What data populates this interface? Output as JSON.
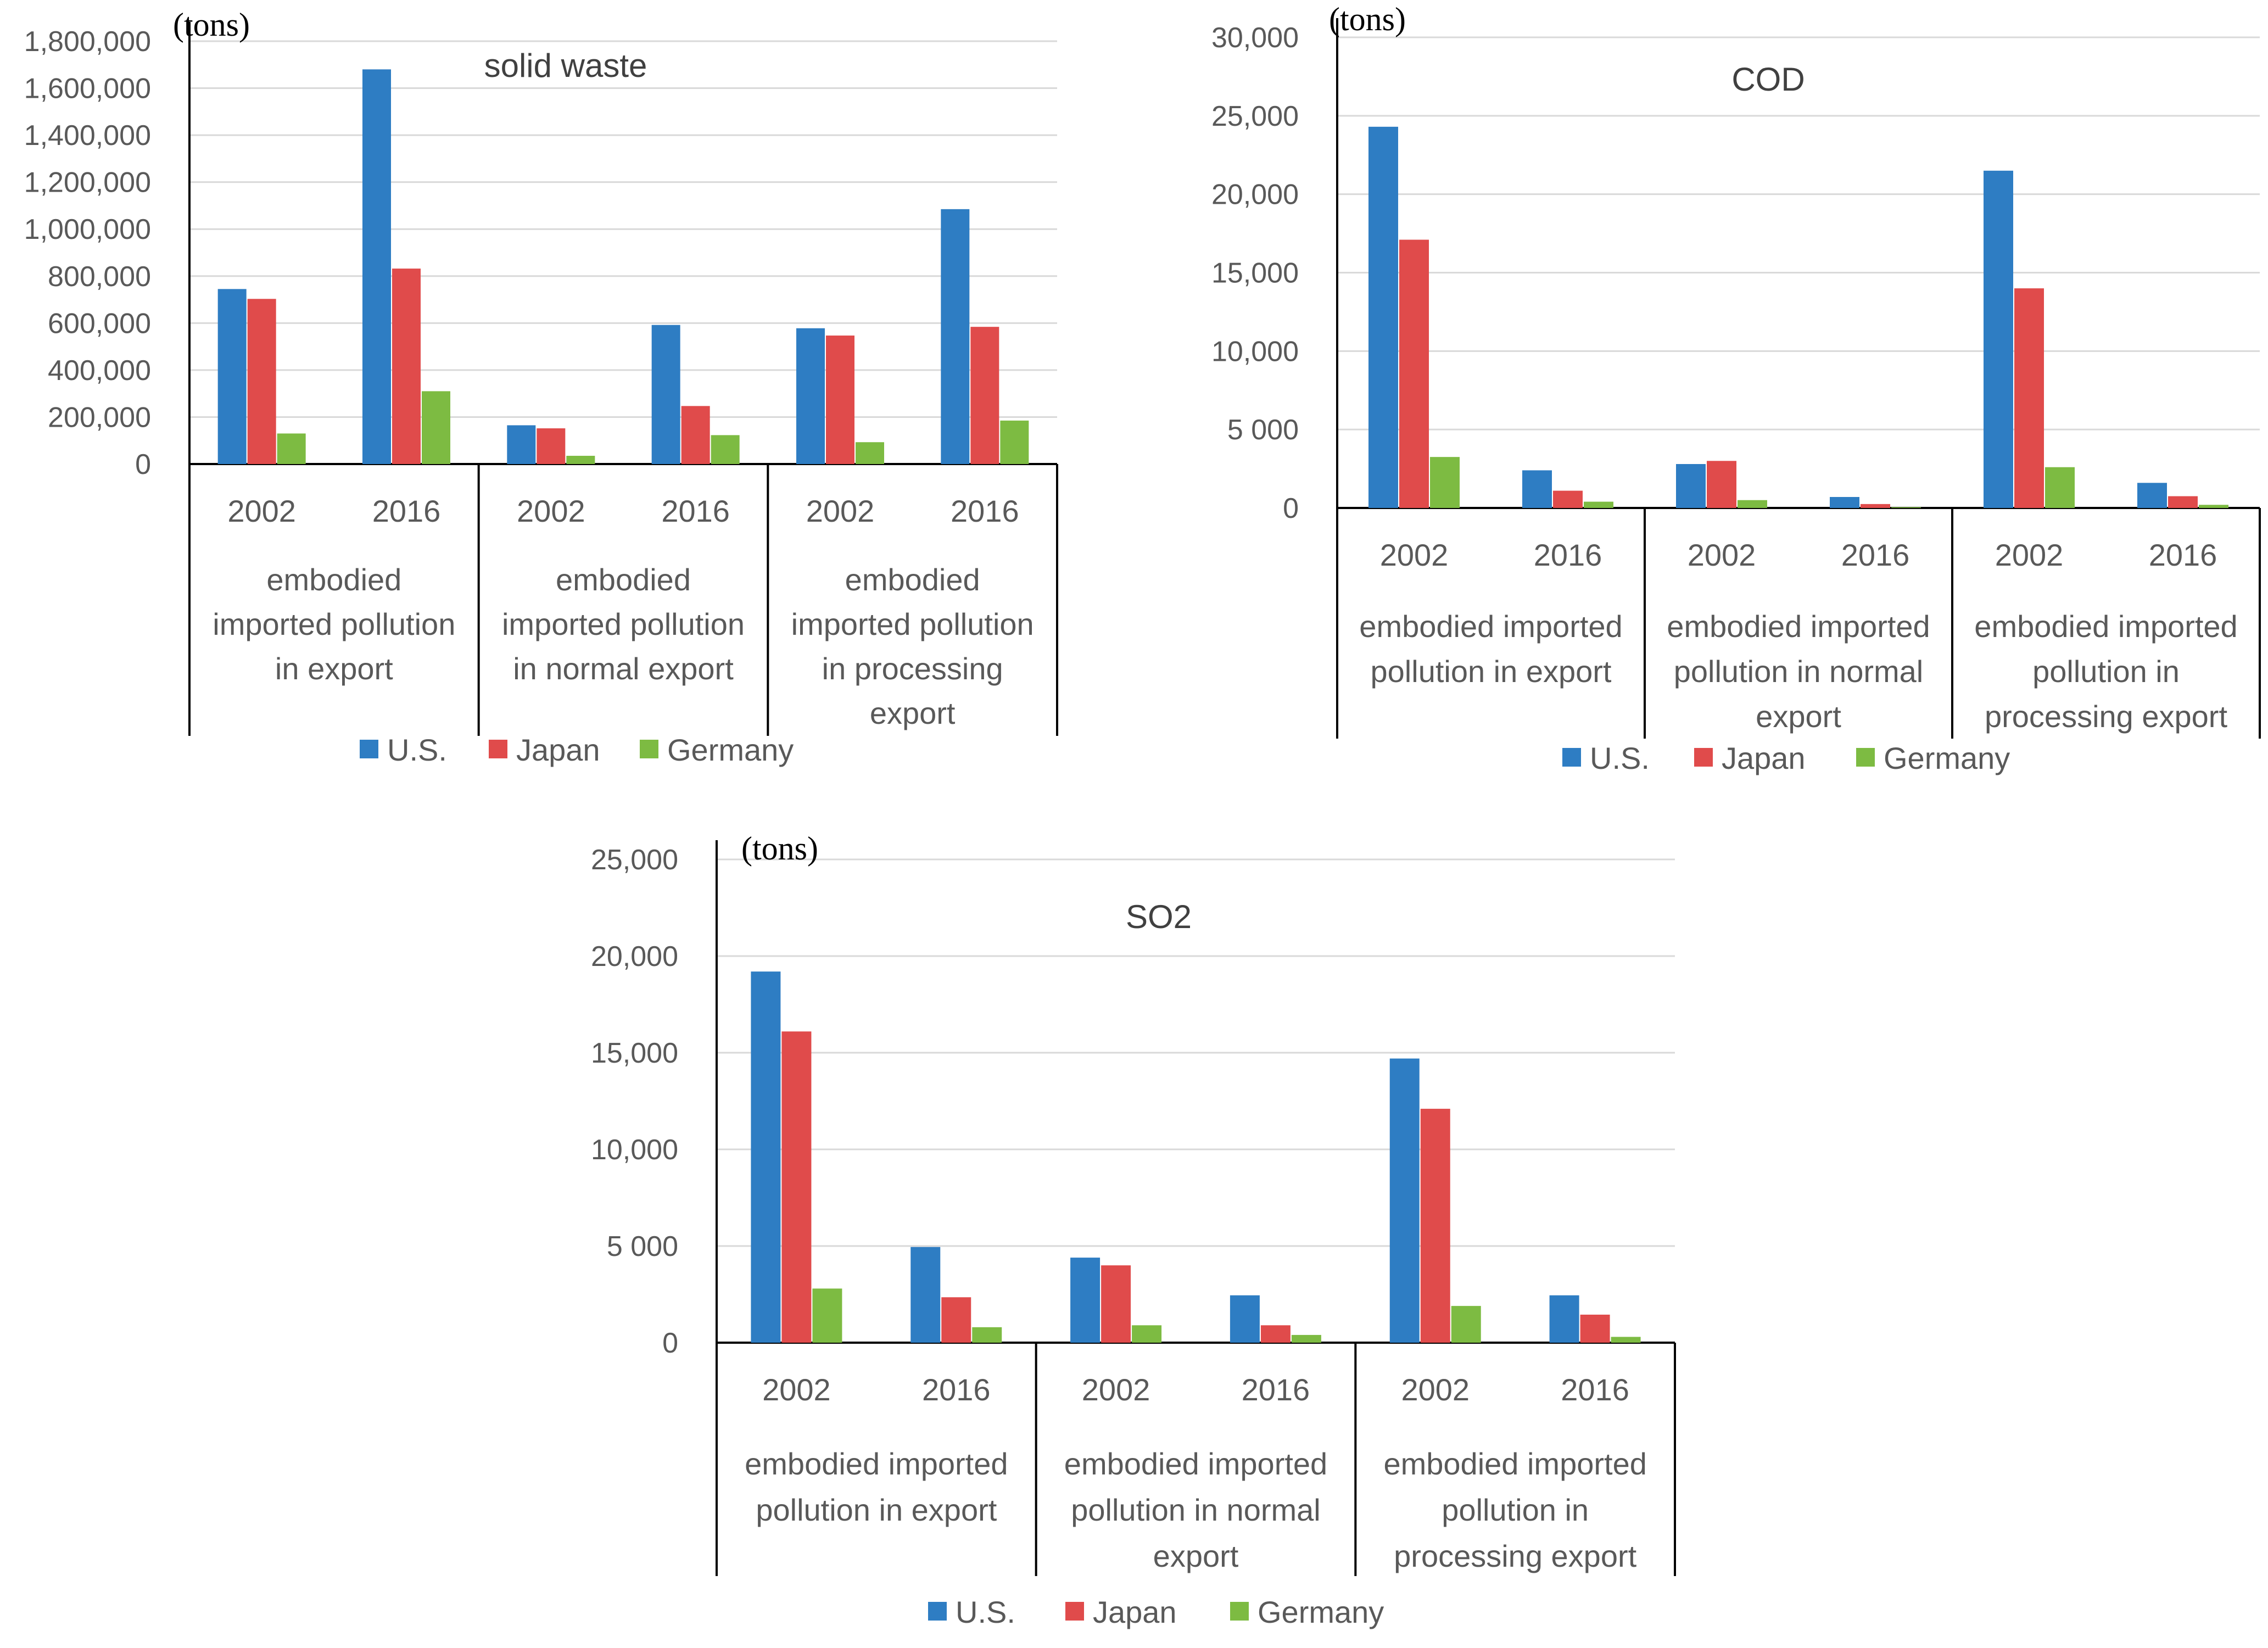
{
  "colors": {
    "us": "#2E7DC3",
    "japan": "#E04B4B",
    "germany": "#7DBB42"
  },
  "chart_data": [
    {
      "type": "bar",
      "title": "solid waste",
      "unit_label": "(tons)",
      "ylim": [
        0,
        1800000
      ],
      "y_ticks": [
        "0",
        "200,000",
        "400,000",
        "600,000",
        "800,000",
        "1,000,000",
        "1,200,000",
        "1,400,000",
        "1,600,000",
        "1,800,000"
      ],
      "groups": [
        {
          "lines": [
            "embodied",
            "imported pollution",
            "in export"
          ],
          "years": [
            "2002",
            "2016"
          ]
        },
        {
          "lines": [
            "embodied",
            "imported pollution",
            "in normal export"
          ],
          "years": [
            "2002",
            "2016"
          ]
        },
        {
          "lines": [
            "embodied",
            "imported pollution",
            "in processing",
            "export"
          ],
          "years": [
            "2002",
            "2016"
          ]
        }
      ],
      "series": [
        {
          "name": "U.S.",
          "values": [
            745000,
            1680000,
            165000,
            592000,
            578000,
            1085000
          ]
        },
        {
          "name": "Japan",
          "values": [
            703000,
            832000,
            152000,
            247000,
            547000,
            584000
          ]
        },
        {
          "name": "Germany",
          "values": [
            130000,
            310000,
            35000,
            123000,
            93000,
            185000
          ]
        }
      ]
    },
    {
      "type": "bar",
      "title": "COD",
      "unit_label": "(tons)",
      "ylim": [
        0,
        30000
      ],
      "y_ticks": [
        "0",
        "5 000",
        "10,000",
        "15,000",
        "20,000",
        "25,000",
        "30,000"
      ],
      "groups": [
        {
          "lines": [
            "embodied imported",
            "pollution in export"
          ],
          "years": [
            "2002",
            "2016"
          ]
        },
        {
          "lines": [
            "embodied imported",
            "pollution in normal",
            "export"
          ],
          "years": [
            "2002",
            "2016"
          ]
        },
        {
          "lines": [
            "embodied imported",
            "pollution in",
            "processing export"
          ],
          "years": [
            "2002",
            "2016"
          ]
        }
      ],
      "series": [
        {
          "name": "U.S.",
          "values": [
            24300,
            2400,
            2800,
            700,
            21500,
            1600
          ]
        },
        {
          "name": "Japan",
          "values": [
            17100,
            1100,
            3000,
            250,
            14000,
            750
          ]
        },
        {
          "name": "Germany",
          "values": [
            3250,
            400,
            500,
            50,
            2600,
            200
          ]
        }
      ]
    },
    {
      "type": "bar",
      "title": "SO2",
      "unit_label": "(tons)",
      "ylim": [
        0,
        25000
      ],
      "y_ticks": [
        "0",
        "5 000",
        "10,000",
        "15,000",
        "20,000",
        "25,000"
      ],
      "groups": [
        {
          "lines": [
            "embodied imported",
            "pollution in export"
          ],
          "years": [
            "2002",
            "2016"
          ]
        },
        {
          "lines": [
            "embodied imported",
            "pollution in normal",
            "export"
          ],
          "years": [
            "2002",
            "2016"
          ]
        },
        {
          "lines": [
            "embodied imported",
            "pollution in",
            "processing export"
          ],
          "years": [
            "2002",
            "2016"
          ]
        }
      ],
      "series": [
        {
          "name": "U.S.",
          "values": [
            19200,
            4950,
            4400,
            2450,
            14700,
            2450
          ]
        },
        {
          "name": "Japan",
          "values": [
            16100,
            2350,
            4000,
            900,
            12100,
            1450
          ]
        },
        {
          "name": "Germany",
          "values": [
            2800,
            800,
            900,
            400,
            1900,
            300
          ]
        }
      ]
    }
  ]
}
